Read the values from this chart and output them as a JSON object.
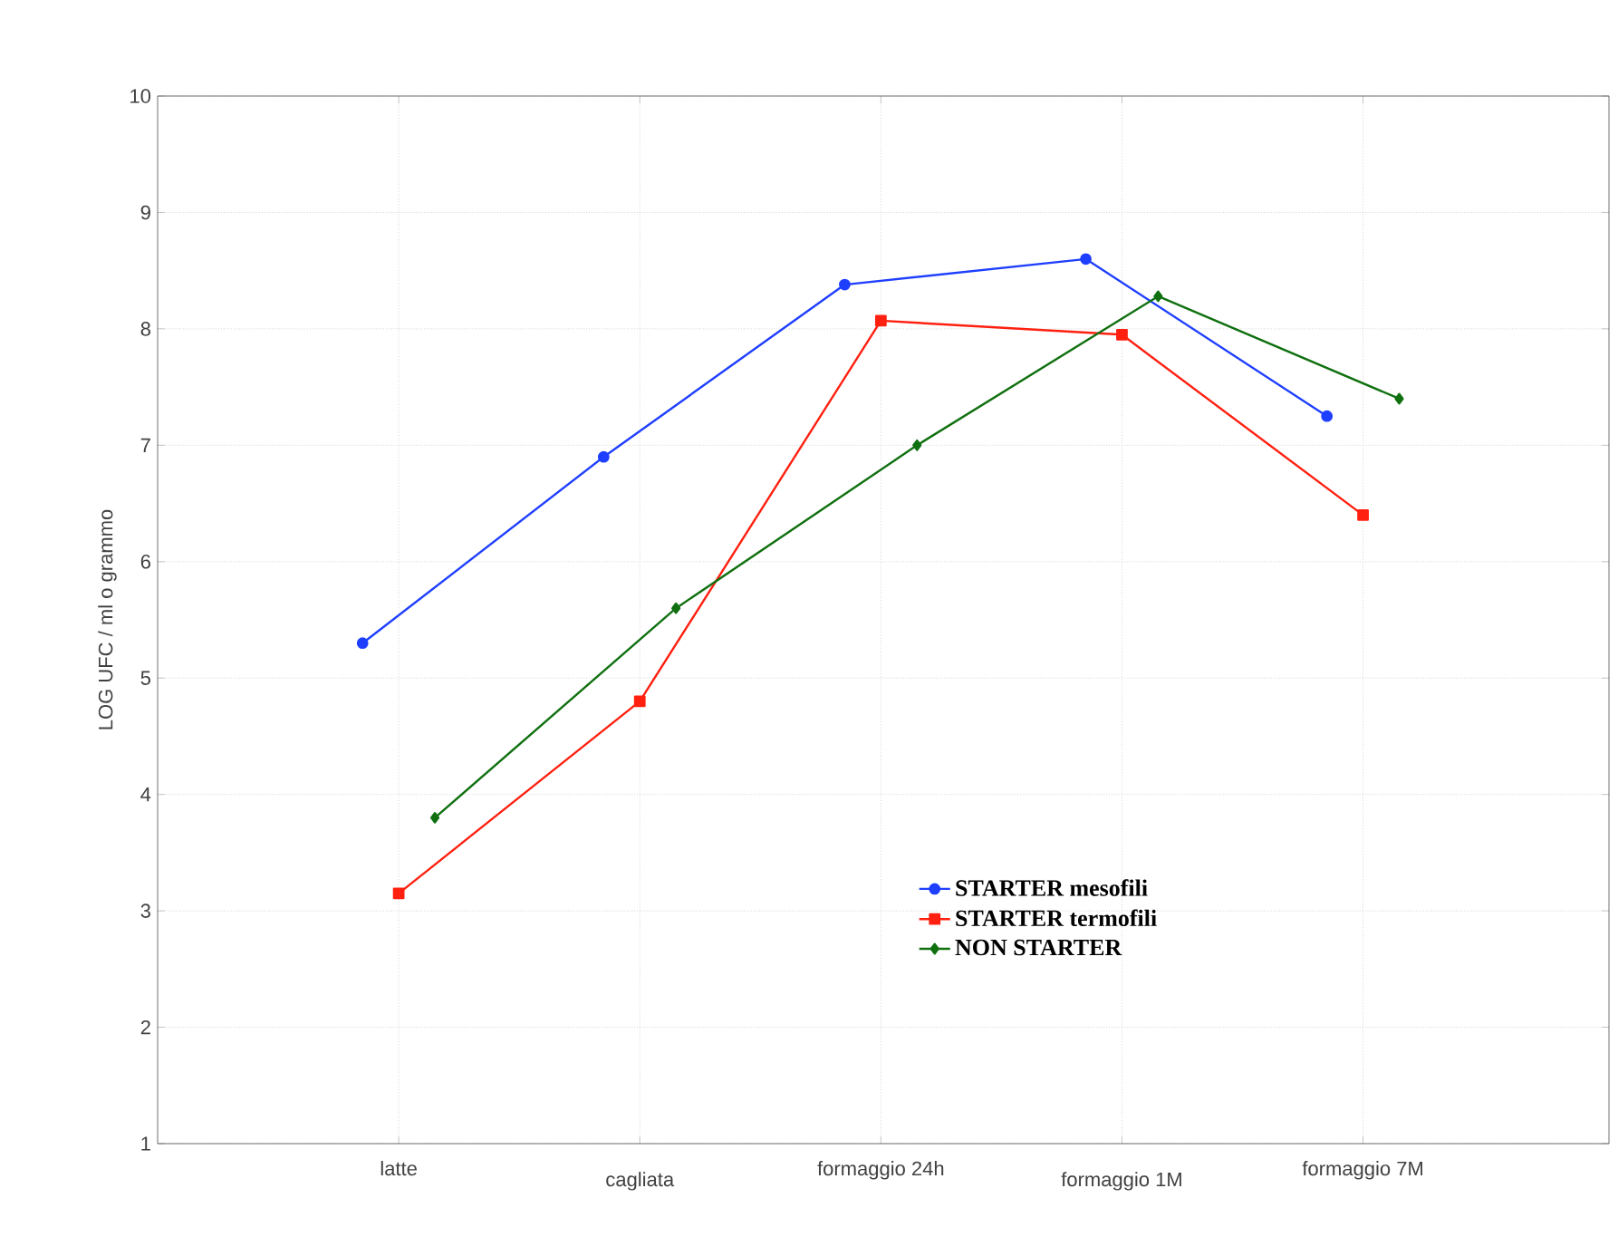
{
  "chart_data": {
    "type": "line",
    "ylabel": "LOG UFC / ml o grammo",
    "categories": [
      "latte",
      "cagliata",
      "formaggio 24h",
      "formaggio 1M",
      "formaggio 7M"
    ],
    "series": [
      {
        "name": "STARTER mesofili",
        "color": "#1f3fff",
        "marker": "circle",
        "values": [
          5.3,
          6.9,
          8.38,
          8.6,
          7.25
        ]
      },
      {
        "name": "STARTER termofili",
        "color": "#ff2010",
        "marker": "square",
        "values": [
          3.15,
          4.8,
          8.07,
          7.95,
          6.4
        ]
      },
      {
        "name": "NON STARTER",
        "color": "#107010",
        "marker": "diamond",
        "values": [
          3.8,
          5.6,
          7.0,
          8.28,
          7.4
        ]
      }
    ],
    "ylim": [
      1,
      10
    ],
    "yticks": [
      1,
      2,
      3,
      4,
      5,
      6,
      7,
      8,
      9,
      10
    ],
    "grid": true,
    "legend": "bottom right",
    "line_style": "solid"
  }
}
